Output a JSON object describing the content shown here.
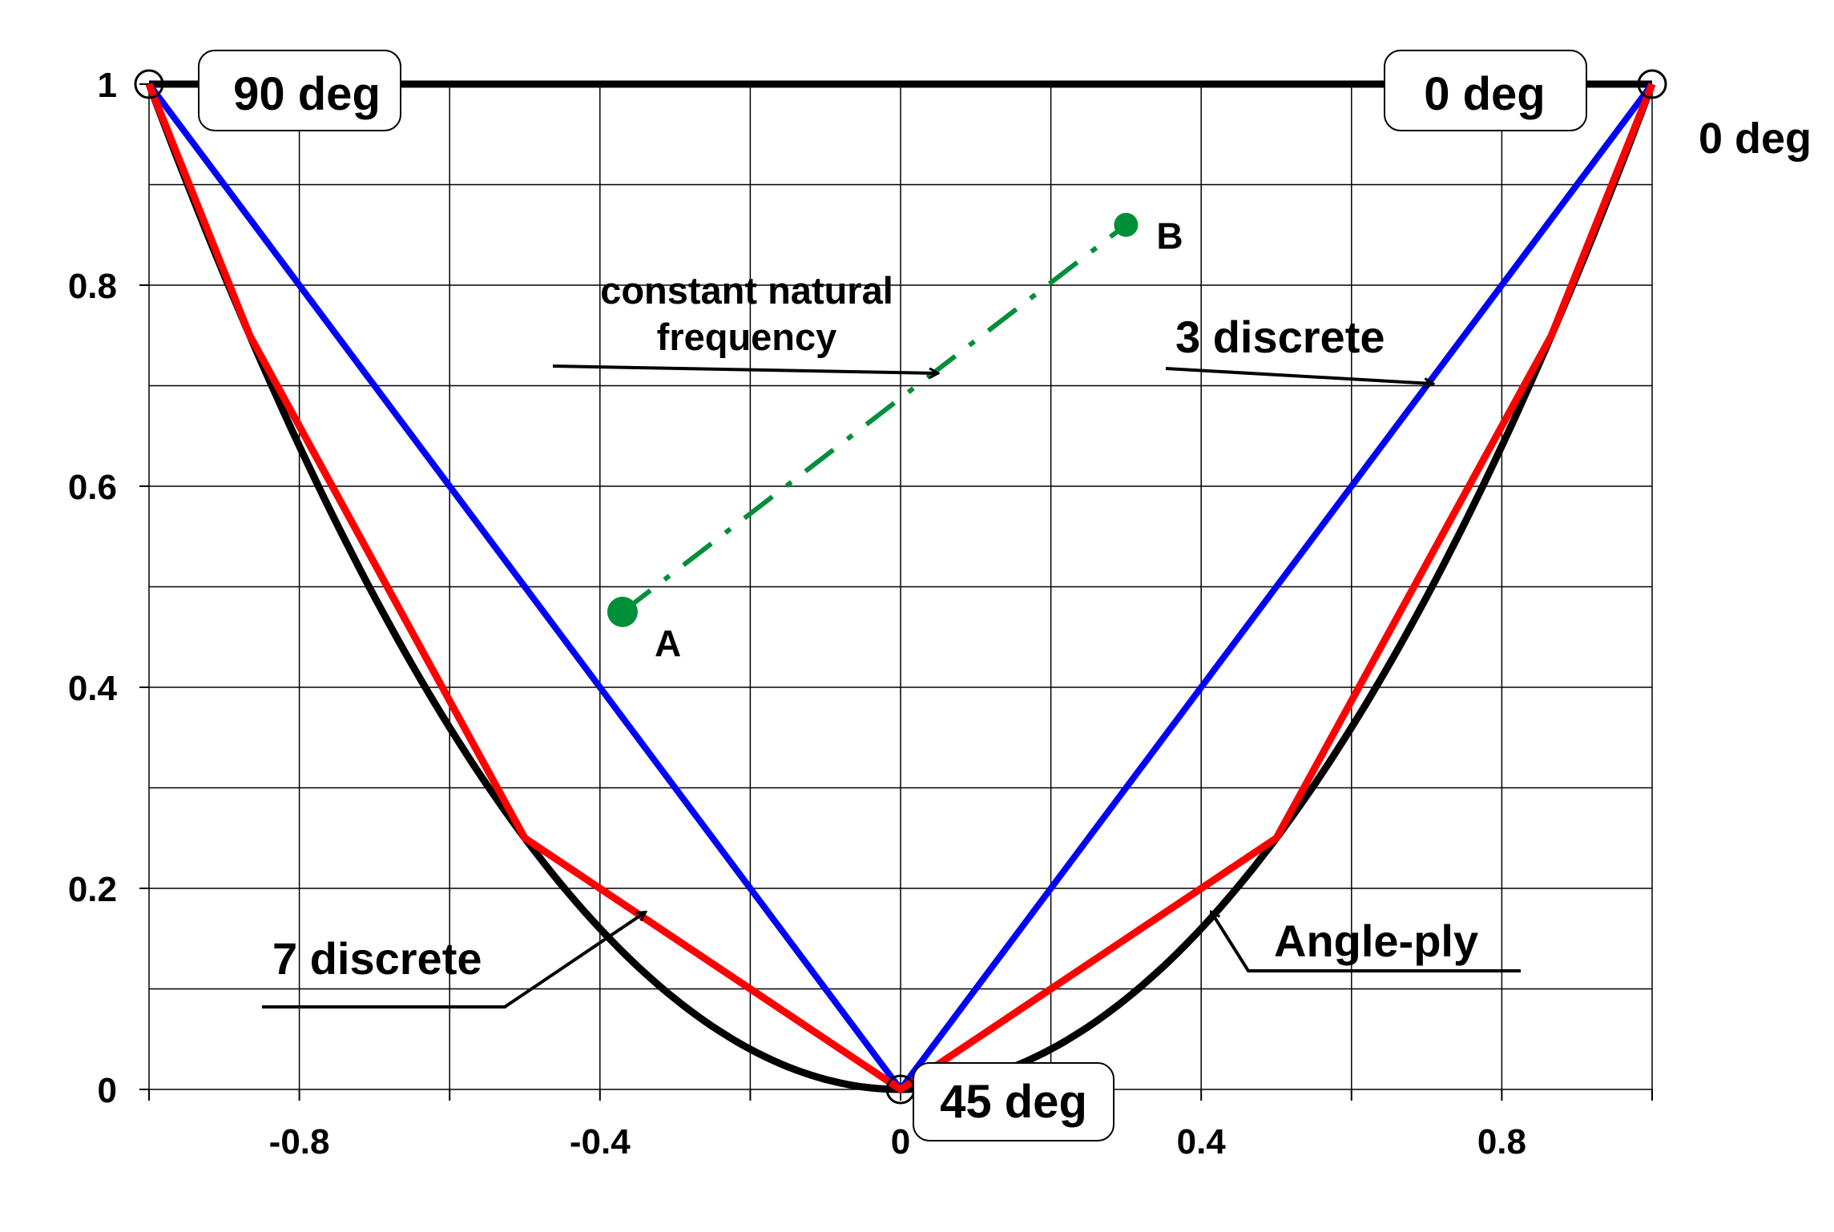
{
  "chart_data": {
    "type": "line",
    "title": "",
    "xlabel": "",
    "ylabel": "",
    "xlim": [
      -1,
      1
    ],
    "ylim": [
      0,
      1
    ],
    "grid": true,
    "x_ticks": [
      -1,
      -0.8,
      -0.6,
      -0.4,
      -0.2,
      0,
      0.2,
      0.4,
      0.6,
      0.8,
      1
    ],
    "x_tick_labels": [
      "-0.8",
      "-0.4",
      "0",
      "0.4",
      "0.8"
    ],
    "x_tick_label_values": [
      -0.8,
      -0.4,
      0,
      0.4,
      0.8
    ],
    "y_ticks": [
      0,
      0.2,
      0.4,
      0.6,
      0.8,
      1
    ],
    "y_tick_labels": [
      "0",
      "0.2",
      "0.4",
      "0.6",
      "0.8",
      "1"
    ],
    "series": [
      {
        "name": "Angle-ply",
        "color": "#000000",
        "x": [
          -1,
          -0.9,
          -0.8,
          -0.7,
          -0.6,
          -0.5,
          -0.4,
          -0.3,
          -0.2,
          -0.1,
          0,
          0.1,
          0.2,
          0.3,
          0.4,
          0.5,
          0.6,
          0.7,
          0.8,
          0.9,
          1
        ],
        "y": [
          1,
          0.81,
          0.64,
          0.49,
          0.36,
          0.25,
          0.16,
          0.09,
          0.04,
          0.01,
          0,
          0.01,
          0.04,
          0.09,
          0.16,
          0.25,
          0.36,
          0.49,
          0.64,
          0.81,
          1
        ]
      },
      {
        "name": "3 discrete",
        "color": "#0000ff",
        "x": [
          -1,
          0,
          1
        ],
        "y": [
          1,
          0,
          1
        ]
      },
      {
        "name": "7 discrete",
        "color": "#ff0000",
        "x": [
          -1,
          -0.866,
          -0.5,
          0,
          0.5,
          0.866,
          1
        ],
        "y": [
          1,
          0.75,
          0.25,
          0,
          0.25,
          0.75,
          1
        ]
      },
      {
        "name": "constant natural frequency",
        "color": "#008f39",
        "x": [
          -0.37,
          0.3
        ],
        "y": [
          0.475,
          0.86
        ]
      }
    ],
    "top_line": {
      "x": [
        -1,
        1
      ],
      "y": [
        1,
        1
      ],
      "color": "#000000"
    },
    "open_markers": [
      {
        "x": -1,
        "y": 1
      },
      {
        "x": 1,
        "y": 1
      },
      {
        "x": 0,
        "y": 0
      }
    ],
    "points": [
      {
        "label": "A",
        "x": -0.37,
        "y": 0.475
      },
      {
        "label": "B",
        "x": 0.3,
        "y": 0.86
      }
    ],
    "callouts": {
      "deg90": "90 deg",
      "deg0_box": "0 deg",
      "deg0_right": "0 deg",
      "deg45": "45 deg",
      "three_discrete": "3 discrete",
      "seven_discrete": "7 discrete",
      "angle_ply": "Angle-ply",
      "cnf_line1": "constant natural",
      "cnf_line2": "frequency"
    }
  }
}
